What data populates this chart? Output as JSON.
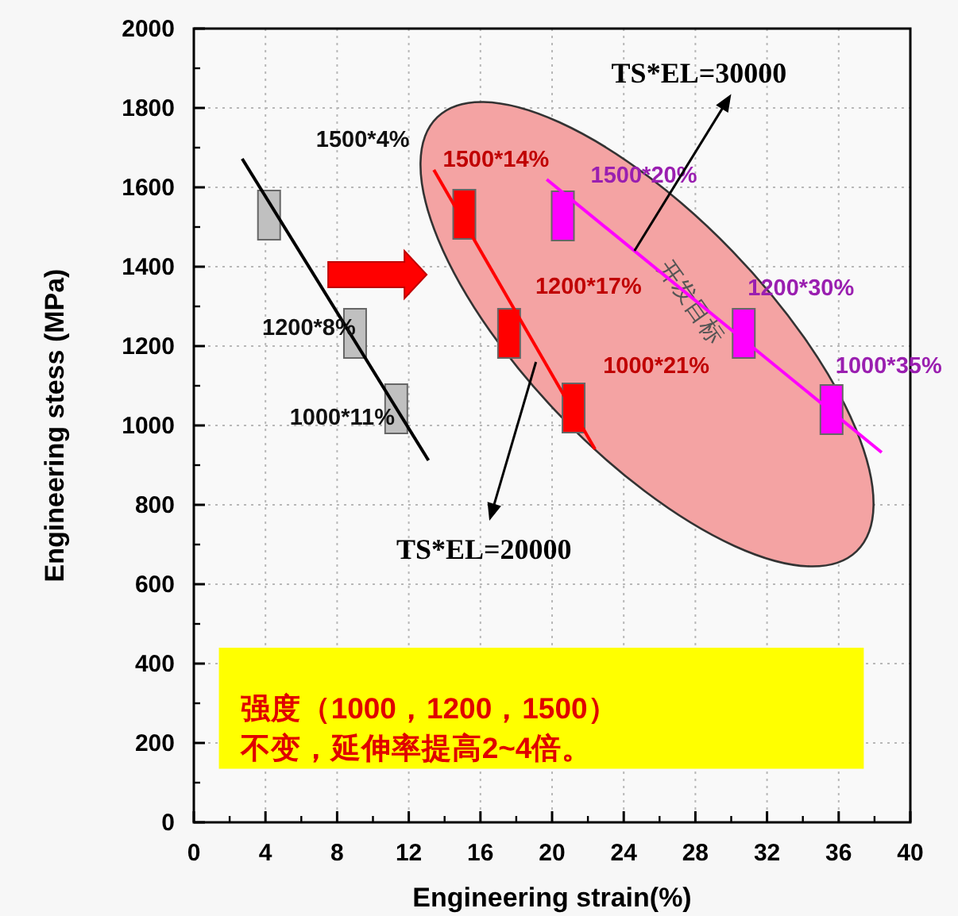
{
  "chart_data": {
    "type": "scatter",
    "xlabel": "Engineering strain(%)",
    "ylabel": "Engineering stess (MPa)",
    "xlim": [
      0,
      40
    ],
    "ylim": [
      0,
      2000
    ],
    "xticks": [
      0,
      4,
      8,
      12,
      16,
      20,
      24,
      28,
      32,
      36,
      40
    ],
    "yticks": [
      0,
      200,
      400,
      600,
      800,
      1000,
      1200,
      1400,
      1600,
      1800,
      2000
    ],
    "grid": true,
    "marker": "square",
    "series": [
      {
        "color": "#c0c0c0",
        "x": [
          4.2,
          9.0,
          11.3
        ],
        "values": [
          1530,
          1232,
          1042
        ],
        "value_labels": [
          "1500*4%",
          "1200*8%",
          "1000*11%"
        ]
      },
      {
        "color": "#ff0000",
        "x": [
          15.1,
          17.6,
          21.2
        ],
        "values": [
          1532,
          1232,
          1044
        ],
        "value_labels": [
          "1500*14%",
          "1200*17%",
          "1000*21%"
        ]
      },
      {
        "color": "#ff00ff",
        "x": [
          20.6,
          30.7,
          35.6
        ],
        "values": [
          1528,
          1232,
          1040
        ],
        "value_labels": [
          "1500*20%",
          "1200*30%",
          "1000*35%"
        ]
      },
      {
        "type": "line",
        "marker": "none",
        "color": "#000000",
        "x": [
          2.7,
          13.1
        ],
        "values": [
          1672,
          912
        ]
      },
      {
        "type": "line",
        "marker": "none",
        "color": "#ff0000",
        "x": [
          13.4,
          22.4
        ],
        "values": [
          1644,
          940
        ]
      },
      {
        "type": "line",
        "marker": "none",
        "color": "#ff00ff",
        "x": [
          19.7,
          38.4
        ],
        "values": [
          1620,
          932
        ]
      }
    ],
    "annotations": [
      {
        "text": "TS*EL=30000",
        "x": 24.6,
        "y": 1440
      },
      {
        "text": "TS*EL=20000",
        "x": 19.1,
        "y": 1160
      },
      "开发目标",
      "强度（1000，1200，1500）",
      "不变，延伸率提高2~4倍。"
    ]
  }
}
